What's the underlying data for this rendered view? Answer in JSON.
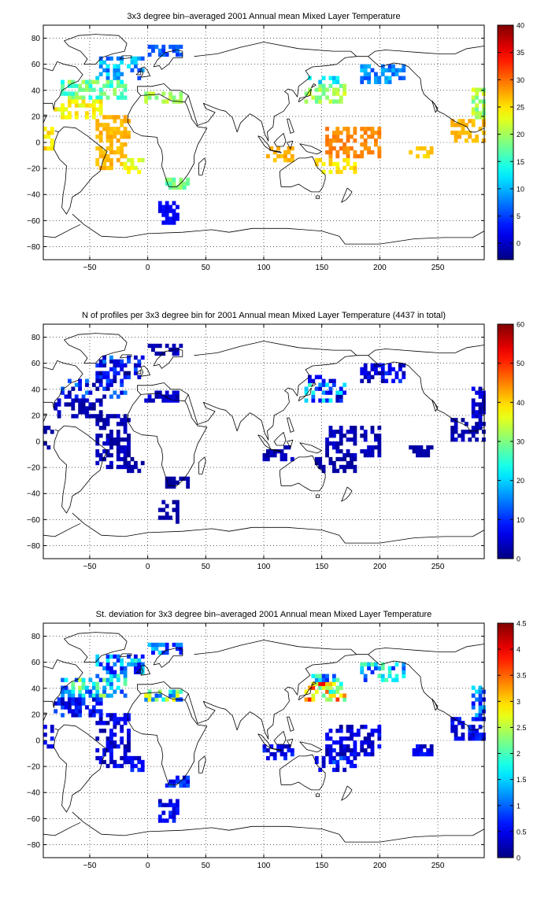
{
  "chart_data": [
    {
      "type": "heatmap",
      "title": "3x3 degree bin–averaged 2001 Annual mean Mixed Layer Temperature",
      "xlim": [
        -90,
        290
      ],
      "ylim": [
        -90,
        90
      ],
      "xticks": [
        -50,
        0,
        50,
        100,
        150,
        200,
        250
      ],
      "yticks": [
        -80,
        -60,
        -40,
        -20,
        0,
        20,
        40,
        60,
        80
      ],
      "grid": true,
      "colorbar": {
        "min": -3,
        "max": 40,
        "ticks": [
          0,
          5,
          10,
          15,
          20,
          25,
          30,
          35,
          40
        ],
        "colormap": "jet",
        "placement": "right"
      },
      "regions": [
        {
          "lon": [
            -45,
            -3
          ],
          "lat": [
            48,
            66
          ],
          "value": 9,
          "spread": 4
        },
        {
          "lon": [
            -75,
            -20
          ],
          "lat": [
            35,
            48
          ],
          "value": 17,
          "spread": 4
        },
        {
          "lon": [
            -80,
            -40
          ],
          "lat": [
            20,
            33
          ],
          "value": 24,
          "spread": 2
        },
        {
          "lon": [
            -45,
            -15
          ],
          "lat": [
            -20,
            20
          ],
          "value": 27,
          "spread": 1
        },
        {
          "lon": [
            -20,
            -5
          ],
          "lat": [
            -22,
            -12
          ],
          "value": 23,
          "spread": 2
        },
        {
          "lon": [
            -88,
            -82
          ],
          "lat": [
            -5,
            10
          ],
          "value": 25,
          "spread": 2
        },
        {
          "lon": [
            -3,
            30
          ],
          "lat": [
            30,
            38
          ],
          "value": 20,
          "spread": 2
        },
        {
          "lon": [
            0,
            30
          ],
          "lat": [
            68,
            75
          ],
          "value": 6,
          "spread": 2
        },
        {
          "lon": [
            135,
            170
          ],
          "lat": [
            30,
            45
          ],
          "value": 20,
          "spread": 3
        },
        {
          "lon": [
            140,
            165
          ],
          "lat": [
            45,
            50
          ],
          "value": 12,
          "spread": 3
        },
        {
          "lon": [
            185,
            220
          ],
          "lat": [
            45,
            60
          ],
          "value": 8,
          "spread": 3
        },
        {
          "lon": [
            155,
            200
          ],
          "lat": [
            -12,
            10
          ],
          "value": 29,
          "spread": 1
        },
        {
          "lon": [
            145,
            180
          ],
          "lat": [
            -22,
            -12
          ],
          "value": 25,
          "spread": 2
        },
        {
          "lon": [
            100,
            125
          ],
          "lat": [
            -15,
            -3
          ],
          "value": 27,
          "spread": 1
        },
        {
          "lon": [
            225,
            245
          ],
          "lat": [
            -12,
            -3
          ],
          "value": 26,
          "spread": 1
        },
        {
          "lon": [
            262,
            290
          ],
          "lat": [
            0,
            18
          ],
          "value": 27,
          "spread": 1
        },
        {
          "lon": [
            280,
            290
          ],
          "lat": [
            20,
            40
          ],
          "value": 20,
          "spread": 3
        },
        {
          "lon": [
            10,
            25
          ],
          "lat": [
            -62,
            -45
          ],
          "value": 2,
          "spread": 1
        },
        {
          "lon": [
            15,
            35
          ],
          "lat": [
            -35,
            -28
          ],
          "value": 18,
          "spread": 2
        }
      ]
    },
    {
      "type": "heatmap",
      "title": "N of profiles per 3x3 degree bin for 2001 Annual mean Mixed Layer Temperature  (4437 in total)",
      "xlim": [
        -90,
        290
      ],
      "ylim": [
        -90,
        90
      ],
      "xticks": [
        -50,
        0,
        50,
        100,
        150,
        200,
        250
      ],
      "yticks": [
        -80,
        -60,
        -40,
        -20,
        0,
        20,
        40,
        60,
        80
      ],
      "grid": true,
      "colorbar": {
        "min": 0,
        "max": 60,
        "ticks": [
          0,
          10,
          20,
          30,
          40,
          50,
          60
        ],
        "colormap": "jet",
        "placement": "right"
      },
      "regions": [
        {
          "lon": [
            -45,
            -3
          ],
          "lat": [
            48,
            66
          ],
          "value": 8,
          "spread": 8
        },
        {
          "lon": [
            -75,
            -20
          ],
          "lat": [
            35,
            48
          ],
          "value": 8,
          "spread": 8
        },
        {
          "lon": [
            -80,
            -40
          ],
          "lat": [
            20,
            33
          ],
          "value": 3,
          "spread": 2
        },
        {
          "lon": [
            -45,
            -15
          ],
          "lat": [
            -20,
            20
          ],
          "value": 3,
          "spread": 2
        },
        {
          "lon": [
            -20,
            -5
          ],
          "lat": [
            -22,
            -12
          ],
          "value": 2,
          "spread": 1
        },
        {
          "lon": [
            -88,
            -82
          ],
          "lat": [
            -5,
            10
          ],
          "value": 2,
          "spread": 1
        },
        {
          "lon": [
            -3,
            30
          ],
          "lat": [
            30,
            38
          ],
          "value": 4,
          "spread": 3
        },
        {
          "lon": [
            0,
            30
          ],
          "lat": [
            68,
            75
          ],
          "value": 3,
          "spread": 2
        },
        {
          "lon": [
            135,
            170
          ],
          "lat": [
            30,
            45
          ],
          "value": 14,
          "spread": 12
        },
        {
          "lon": [
            140,
            165
          ],
          "lat": [
            45,
            50
          ],
          "value": 6,
          "spread": 4
        },
        {
          "lon": [
            185,
            220
          ],
          "lat": [
            45,
            60
          ],
          "value": 6,
          "spread": 5
        },
        {
          "lon": [
            155,
            200
          ],
          "lat": [
            -12,
            10
          ],
          "value": 3,
          "spread": 2
        },
        {
          "lon": [
            145,
            180
          ],
          "lat": [
            -22,
            -12
          ],
          "value": 2,
          "spread": 1
        },
        {
          "lon": [
            100,
            125
          ],
          "lat": [
            -15,
            -3
          ],
          "value": 3,
          "spread": 2
        },
        {
          "lon": [
            225,
            245
          ],
          "lat": [
            -12,
            -3
          ],
          "value": 2,
          "spread": 1
        },
        {
          "lon": [
            262,
            290
          ],
          "lat": [
            0,
            18
          ],
          "value": 3,
          "spread": 2
        },
        {
          "lon": [
            280,
            290
          ],
          "lat": [
            20,
            40
          ],
          "value": 4,
          "spread": 3
        },
        {
          "lon": [
            10,
            25
          ],
          "lat": [
            -62,
            -45
          ],
          "value": 2,
          "spread": 1
        },
        {
          "lon": [
            15,
            35
          ],
          "lat": [
            -35,
            -28
          ],
          "value": 2,
          "spread": 1
        }
      ]
    },
    {
      "type": "heatmap",
      "title": "St. deviation for 3x3 degree bin–averaged 2001 Annual mean Mixed Layer Temperature",
      "xlim": [
        -90,
        290
      ],
      "ylim": [
        -90,
        90
      ],
      "xticks": [
        -50,
        0,
        50,
        100,
        150,
        200,
        250
      ],
      "yticks": [
        -80,
        -60,
        -40,
        -20,
        0,
        20,
        40,
        60,
        80
      ],
      "grid": true,
      "colorbar": {
        "min": 0,
        "max": 4.5,
        "ticks": [
          0,
          0.5,
          1,
          1.5,
          2,
          2.5,
          3,
          3.5,
          4,
          4.5
        ],
        "colormap": "jet",
        "placement": "right"
      },
      "regions": [
        {
          "lon": [
            -45,
            -3
          ],
          "lat": [
            48,
            66
          ],
          "value": 1.2,
          "spread": 0.8
        },
        {
          "lon": [
            -75,
            -20
          ],
          "lat": [
            35,
            48
          ],
          "value": 1.6,
          "spread": 1.0
        },
        {
          "lon": [
            -80,
            -40
          ],
          "lat": [
            20,
            33
          ],
          "value": 0.6,
          "spread": 0.4
        },
        {
          "lon": [
            -45,
            -15
          ],
          "lat": [
            -20,
            20
          ],
          "value": 0.4,
          "spread": 0.3
        },
        {
          "lon": [
            -20,
            -5
          ],
          "lat": [
            -22,
            -12
          ],
          "value": 0.5,
          "spread": 0.3
        },
        {
          "lon": [
            -88,
            -82
          ],
          "lat": [
            -5,
            10
          ],
          "value": 0.5,
          "spread": 0.3
        },
        {
          "lon": [
            -3,
            30
          ],
          "lat": [
            30,
            38
          ],
          "value": 1.8,
          "spread": 1.0
        },
        {
          "lon": [
            0,
            30
          ],
          "lat": [
            68,
            75
          ],
          "value": 1.0,
          "spread": 0.6
        },
        {
          "lon": [
            135,
            170
          ],
          "lat": [
            30,
            45
          ],
          "value": 2.8,
          "spread": 1.2
        },
        {
          "lon": [
            140,
            165
          ],
          "lat": [
            45,
            50
          ],
          "value": 1.5,
          "spread": 0.8
        },
        {
          "lon": [
            185,
            220
          ],
          "lat": [
            45,
            60
          ],
          "value": 1.5,
          "spread": 0.8
        },
        {
          "lon": [
            155,
            200
          ],
          "lat": [
            -12,
            10
          ],
          "value": 0.4,
          "spread": 0.3
        },
        {
          "lon": [
            145,
            180
          ],
          "lat": [
            -22,
            -12
          ],
          "value": 0.6,
          "spread": 0.4
        },
        {
          "lon": [
            100,
            125
          ],
          "lat": [
            -15,
            -3
          ],
          "value": 0.5,
          "spread": 0.3
        },
        {
          "lon": [
            225,
            245
          ],
          "lat": [
            -12,
            -3
          ],
          "value": 0.4,
          "spread": 0.3
        },
        {
          "lon": [
            262,
            290
          ],
          "lat": [
            0,
            18
          ],
          "value": 0.5,
          "spread": 0.3
        },
        {
          "lon": [
            280,
            290
          ],
          "lat": [
            20,
            40
          ],
          "value": 1.0,
          "spread": 0.6
        },
        {
          "lon": [
            10,
            25
          ],
          "lat": [
            -62,
            -45
          ],
          "value": 0.5,
          "spread": 0.3
        },
        {
          "lon": [
            15,
            35
          ],
          "lat": [
            -35,
            -28
          ],
          "value": 0.8,
          "spread": 0.5
        }
      ]
    }
  ]
}
